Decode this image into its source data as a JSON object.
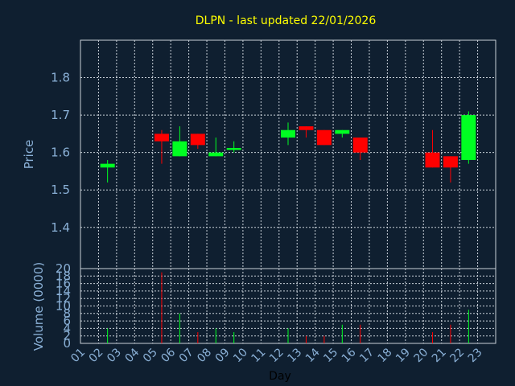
{
  "title": "DLPN - last updated 22/01/2026",
  "colors": {
    "background": "#0f1f30",
    "title": "#ffff00",
    "axis_text": "#8ab0d6",
    "up": "#00ff22",
    "down": "#ff0000",
    "grid": "#c8d0d8"
  },
  "chart_data": {
    "type": "candlestick",
    "title": "DLPN - last updated 22/01/2026",
    "ylabel": "Price",
    "xlabel": "Day",
    "volume_label": "Volume (0000)",
    "ylim": [
      1.29,
      1.9
    ],
    "yticks": [
      1.4,
      1.5,
      1.6,
      1.7,
      1.8
    ],
    "ytick_labels": [
      "1.4",
      "1.5",
      "1.6",
      "1.7",
      "1.8"
    ],
    "volume_ylim": [
      0,
      20
    ],
    "volume_ticks": [
      0,
      2,
      4,
      6,
      8,
      10,
      12,
      14,
      16,
      18,
      20
    ],
    "volume_tick_labels": [
      "0",
      "2",
      "4",
      "6",
      "8",
      "10",
      "12",
      "14",
      "16",
      "18",
      "20"
    ],
    "x_ticks": [
      "01",
      "02",
      "03",
      "04",
      "05",
      "06",
      "07",
      "08",
      "09",
      "10",
      "11",
      "12",
      "13",
      "14",
      "15",
      "16",
      "17",
      "18",
      "19",
      "20",
      "21",
      "22",
      "23"
    ],
    "grid": true,
    "candles": [
      {
        "day": "02",
        "open": 1.56,
        "high": 1.58,
        "low": 1.52,
        "close": 1.57,
        "volume": 4
      },
      {
        "day": "05",
        "open": 1.65,
        "high": 1.66,
        "low": 1.57,
        "close": 1.63,
        "volume": 19
      },
      {
        "day": "06",
        "open": 1.59,
        "high": 1.67,
        "low": 1.59,
        "close": 1.63,
        "volume": 8
      },
      {
        "day": "07",
        "open": 1.65,
        "high": 1.65,
        "low": 1.61,
        "close": 1.62,
        "volume": 3
      },
      {
        "day": "08",
        "open": 1.59,
        "high": 1.64,
        "low": 1.59,
        "close": 1.6,
        "volume": 4
      },
      {
        "day": "09",
        "open": 1.607,
        "high": 1.63,
        "low": 1.6,
        "close": 1.612,
        "volume": 3
      },
      {
        "day": "12",
        "open": 1.64,
        "high": 1.68,
        "low": 1.62,
        "close": 1.66,
        "volume": 4
      },
      {
        "day": "13",
        "open": 1.67,
        "high": 1.67,
        "low": 1.64,
        "close": 1.66,
        "volume": 2
      },
      {
        "day": "14",
        "open": 1.66,
        "high": 1.66,
        "low": 1.62,
        "close": 1.62,
        "volume": 2
      },
      {
        "day": "15",
        "open": 1.65,
        "high": 1.66,
        "low": 1.64,
        "close": 1.66,
        "volume": 5
      },
      {
        "day": "16",
        "open": 1.64,
        "high": 1.64,
        "low": 1.58,
        "close": 1.6,
        "volume": 5
      },
      {
        "day": "20",
        "open": 1.6,
        "high": 1.66,
        "low": 1.56,
        "close": 1.56,
        "volume": 3
      },
      {
        "day": "21",
        "open": 1.59,
        "high": 1.59,
        "low": 1.52,
        "close": 1.56,
        "volume": 5
      },
      {
        "day": "22",
        "open": 1.58,
        "high": 1.71,
        "low": 1.57,
        "close": 1.7,
        "volume": 9
      }
    ]
  }
}
